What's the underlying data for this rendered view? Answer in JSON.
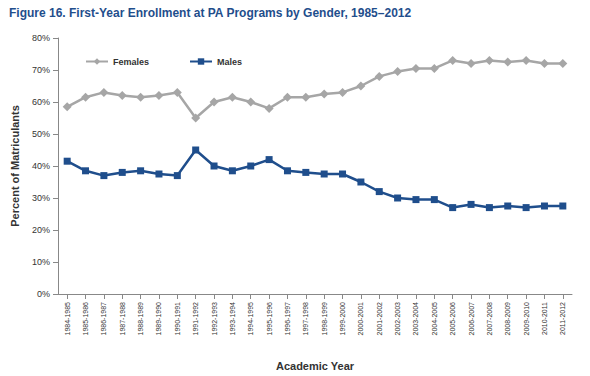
{
  "chart_data": {
    "type": "line",
    "title": "Figure 16. First-Year Enrollment at PA Programs by Gender, 1985–2012",
    "x_label": "Academic Year",
    "y_label": "Percent of Matriculants",
    "categories": [
      "1984-1985",
      "1985-1986",
      "1986-1987",
      "1987-1988",
      "1988-1989",
      "1989-1990",
      "1990-1991",
      "1991-1992",
      "1992-1993",
      "1993-1994",
      "1994-1995",
      "1995-1996",
      "1996-1997",
      "1997-1998",
      "1998-1999",
      "1999-2000",
      "2000-2001",
      "2001-2002",
      "2002-2003",
      "2003-2004",
      "2004-2005",
      "2005-2006",
      "2006-2007",
      "2007-2008",
      "2008-2009",
      "2009-2010",
      "2010-2011",
      "2011-2012"
    ],
    "series": [
      {
        "name": "Females",
        "color": "#a6a6a6",
        "marker": "diamond",
        "values": [
          58.5,
          61.5,
          63,
          62,
          61.5,
          62,
          63,
          55,
          60,
          61.5,
          60,
          58,
          61.5,
          61.5,
          62.5,
          63,
          65,
          68,
          69.5,
          70.5,
          70.5,
          73,
          72,
          73,
          72.5,
          73,
          72,
          72
        ]
      },
      {
        "name": "Males",
        "color": "#1f4e8c",
        "marker": "square",
        "values": [
          41.5,
          38.5,
          37,
          38,
          38.5,
          37.5,
          37,
          45,
          40,
          38.5,
          40,
          42,
          38.5,
          38,
          37.5,
          37.5,
          35,
          32,
          30,
          29.5,
          29.5,
          27,
          28,
          27,
          27.5,
          27,
          27.5,
          27.5
        ]
      }
    ],
    "ylim": [
      0,
      80
    ],
    "yticks": [
      {
        "value": 0,
        "label": "0%"
      },
      {
        "value": 10,
        "label": "10%"
      },
      {
        "value": 20,
        "label": "20%"
      },
      {
        "value": 30,
        "label": "30%"
      },
      {
        "value": 40,
        "label": "40%"
      },
      {
        "value": 50,
        "label": "50%"
      },
      {
        "value": 60,
        "label": "60%"
      },
      {
        "value": 70,
        "label": "70%"
      },
      {
        "value": 80,
        "label": "80%"
      }
    ],
    "grid": false,
    "legend": "top-left"
  }
}
